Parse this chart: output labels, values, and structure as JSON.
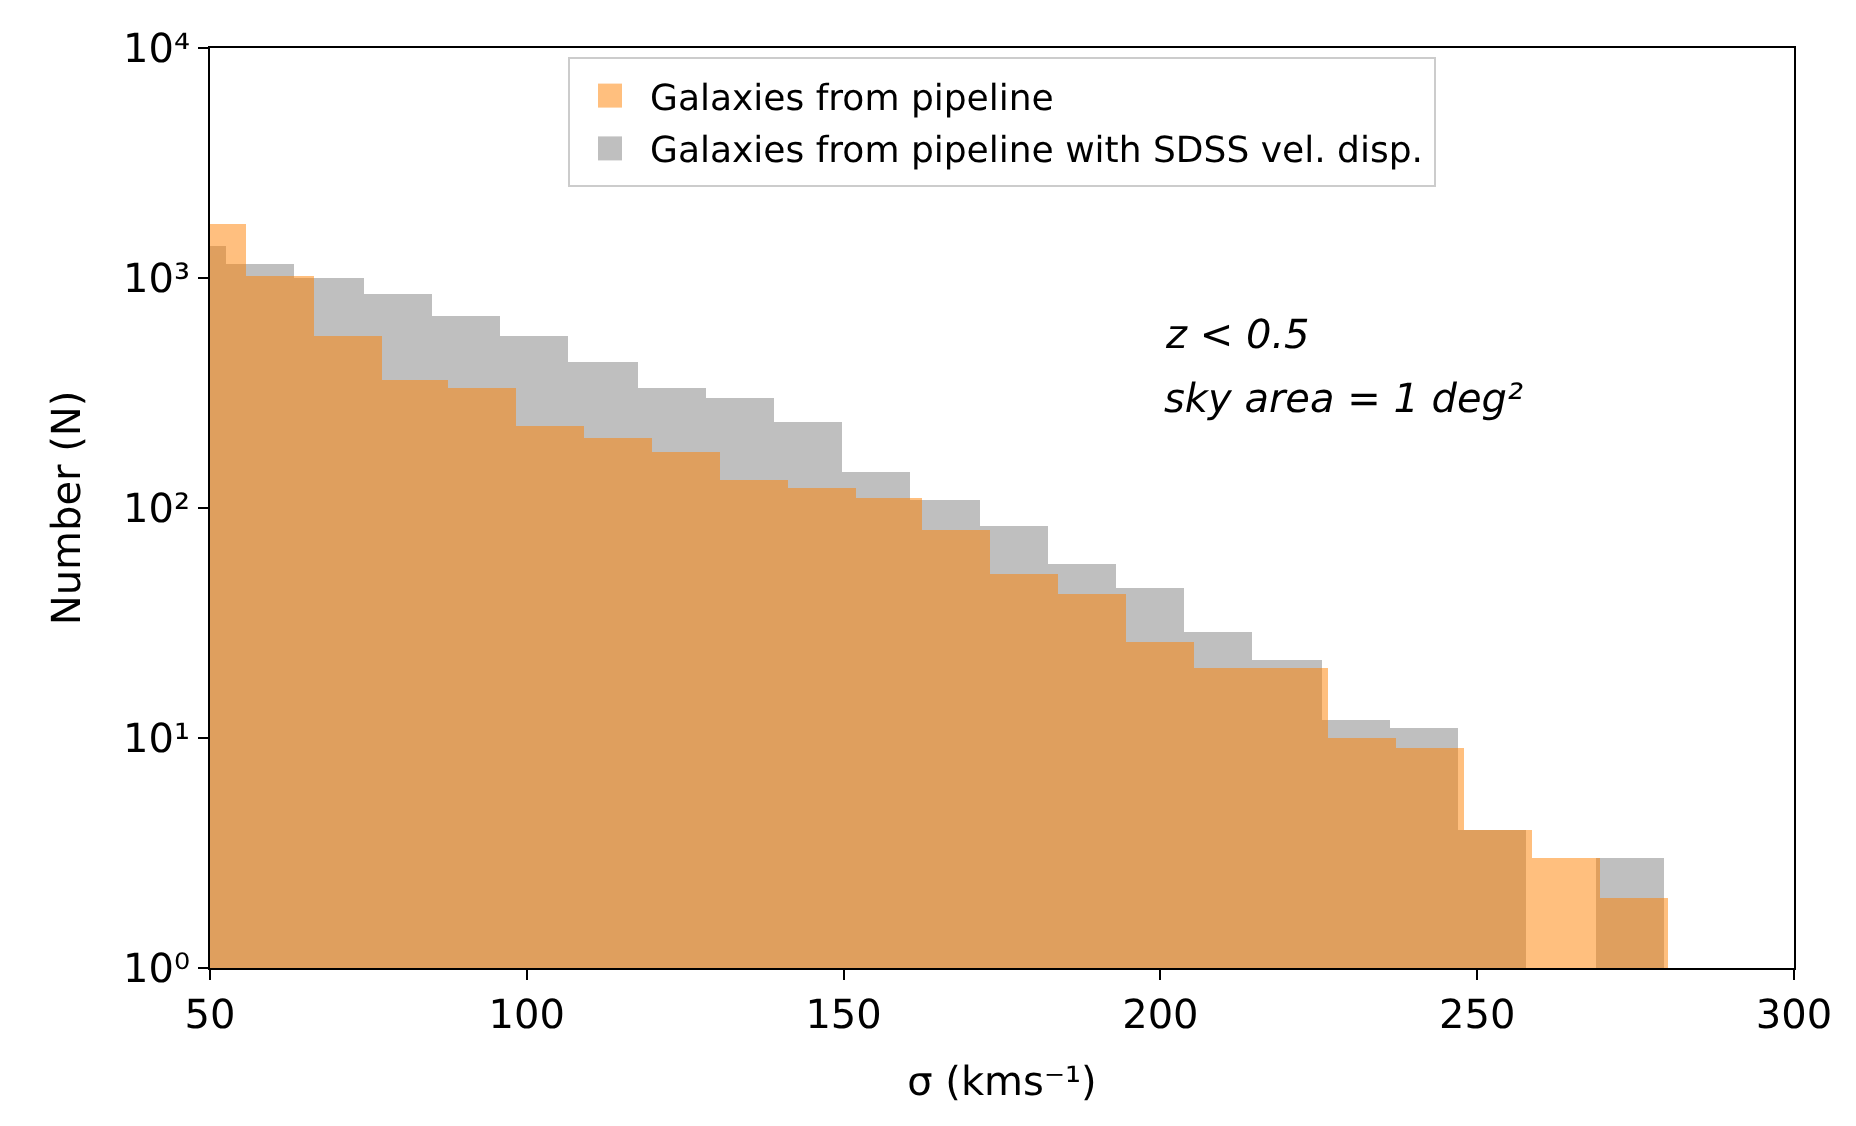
{
  "chart_data": {
    "type": "histogram",
    "xlabel": "σ (kms⁻¹)",
    "ylabel": "Number (N)",
    "log": "y",
    "legend": "top",
    "xlim": [
      50,
      300
    ],
    "xticks": [
      50,
      100,
      150,
      200,
      250,
      300
    ],
    "ylim": [
      1,
      10000
    ],
    "yticks": [
      {
        "value": 1,
        "label": "10⁰"
      },
      {
        "value": 10,
        "label": "10¹"
      },
      {
        "value": 100,
        "label": "10²"
      },
      {
        "value": 1000,
        "label": "10³"
      },
      {
        "value": 10000,
        "label": "10⁴"
      }
    ],
    "bins": [
      50,
      55.7,
      66.4,
      77.0,
      87.7,
      98.4,
      109.1,
      119.8,
      130.4,
      141.1,
      151.8,
      162.5,
      173.2,
      183.8,
      194.5,
      205.2,
      215.9,
      226.6,
      237.2,
      247.9,
      258.6,
      269.3,
      280.0
    ],
    "series": [
      {
        "name": "Galaxies from pipeline",
        "color": "#ff8000",
        "values": [
          1730,
          1030,
          560,
          360,
          330,
          226,
          202,
          174,
          132,
          121,
          111,
          80,
          52,
          42,
          26,
          20,
          20,
          10,
          9,
          4,
          3,
          2
        ]
      },
      {
        "name": "Galaxies from pipeline with SDSS vel. disp.",
        "color": "#808080",
        "bins": [
          50,
          52.6,
          63.4,
          74.2,
          85.0,
          95.8,
          106.6,
          117.4,
          128.2,
          139.0,
          149.8,
          160.6,
          171.4,
          182.2,
          193.0,
          203.8,
          214.6,
          225.4,
          236.2,
          247.0,
          257.8,
          268.6,
          279.4
        ],
        "values": [
          1370,
          1150,
          1000,
          850,
          680,
          560,
          430,
          335,
          300,
          235,
          144,
          108,
          84,
          57,
          45,
          29,
          22,
          12,
          11,
          4,
          null,
          3
        ]
      }
    ],
    "annotations": [
      "z < 0.5",
      "sky area = 1 deg²"
    ]
  }
}
